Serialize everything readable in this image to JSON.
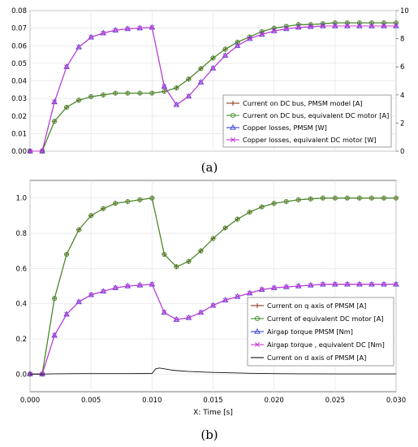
{
  "chart_data": [
    {
      "panel": "a",
      "type": "line",
      "caption": "(a)",
      "xlim": [
        0,
        0.03
      ],
      "ylim": [
        0,
        0.08
      ],
      "y2lim": [
        0,
        10
      ],
      "yticks": [
        "0.00",
        "0.01",
        "0.02",
        "0.03",
        "0.04",
        "0.05",
        "0.06",
        "0.07",
        "0.08"
      ],
      "y2ticks": [
        "0",
        "2",
        "4",
        "6",
        "8",
        "10"
      ],
      "grid": true,
      "legend_position": "lower-right",
      "series": [
        {
          "name": "Current on DC bus, PMSM model [A]",
          "color": "#8b3a1a",
          "marker": "plus",
          "axis": "left",
          "x": [
            0,
            0.001,
            0.002,
            0.003,
            0.004,
            0.005,
            0.006,
            0.007,
            0.008,
            0.009,
            0.01,
            0.011,
            0.012,
            0.013,
            0.014,
            0.015,
            0.016,
            0.017,
            0.018,
            0.019,
            0.02,
            0.021,
            0.022,
            0.023,
            0.024,
            0.025,
            0.026,
            0.027,
            0.028,
            0.029,
            0.03
          ],
          "y": [
            0,
            0,
            0.017,
            0.025,
            0.029,
            0.031,
            0.032,
            0.033,
            0.033,
            0.033,
            0.033,
            0.034,
            0.036,
            0.041,
            0.047,
            0.053,
            0.058,
            0.062,
            0.065,
            0.068,
            0.07,
            0.071,
            0.072,
            0.072,
            0.0725,
            0.073,
            0.073,
            0.073,
            0.073,
            0.073,
            0.073
          ]
        },
        {
          "name": "Current on DC bus, equivalent DC motor [A]",
          "color": "#3f8f2a",
          "marker": "circle",
          "axis": "left",
          "x": [
            0,
            0.001,
            0.002,
            0.003,
            0.004,
            0.005,
            0.006,
            0.007,
            0.008,
            0.009,
            0.01,
            0.011,
            0.012,
            0.013,
            0.014,
            0.015,
            0.016,
            0.017,
            0.018,
            0.019,
            0.02,
            0.021,
            0.022,
            0.023,
            0.024,
            0.025,
            0.026,
            0.027,
            0.028,
            0.029,
            0.03
          ],
          "y": [
            0,
            0,
            0.017,
            0.025,
            0.029,
            0.031,
            0.032,
            0.033,
            0.033,
            0.033,
            0.033,
            0.034,
            0.036,
            0.041,
            0.047,
            0.053,
            0.058,
            0.062,
            0.065,
            0.068,
            0.07,
            0.071,
            0.072,
            0.072,
            0.0725,
            0.073,
            0.073,
            0.073,
            0.073,
            0.073,
            0.073
          ]
        },
        {
          "name": "Copper losses, PMSM [W]",
          "color": "#3a3fd6",
          "marker": "triangle",
          "axis": "right",
          "x": [
            0,
            0.001,
            0.002,
            0.003,
            0.004,
            0.005,
            0.006,
            0.007,
            0.008,
            0.009,
            0.01,
            0.011,
            0.012,
            0.013,
            0.014,
            0.015,
            0.016,
            0.017,
            0.018,
            0.019,
            0.02,
            0.021,
            0.022,
            0.023,
            0.024,
            0.025,
            0.026,
            0.027,
            0.028,
            0.029,
            0.03
          ],
          "y": [
            0,
            0,
            3.5,
            6.0,
            7.4,
            8.1,
            8.4,
            8.6,
            8.7,
            8.75,
            8.8,
            4.6,
            3.3,
            3.9,
            4.9,
            5.9,
            6.8,
            7.5,
            8.0,
            8.3,
            8.55,
            8.7,
            8.8,
            8.85,
            8.9,
            8.9,
            8.9,
            8.9,
            8.9,
            8.9,
            8.9
          ]
        },
        {
          "name": "Copper losses, equivalent DC motor [W]",
          "color": "#c43ad6",
          "marker": "x",
          "axis": "right",
          "x": [
            0,
            0.001,
            0.002,
            0.003,
            0.004,
            0.005,
            0.006,
            0.007,
            0.008,
            0.009,
            0.01,
            0.011,
            0.012,
            0.013,
            0.014,
            0.015,
            0.016,
            0.017,
            0.018,
            0.019,
            0.02,
            0.021,
            0.022,
            0.023,
            0.024,
            0.025,
            0.026,
            0.027,
            0.028,
            0.029,
            0.03
          ],
          "y": [
            0,
            0,
            3.5,
            6.0,
            7.4,
            8.1,
            8.4,
            8.6,
            8.7,
            8.75,
            8.8,
            4.6,
            3.3,
            3.9,
            4.9,
            5.9,
            6.8,
            7.5,
            8.0,
            8.3,
            8.55,
            8.7,
            8.8,
            8.85,
            8.9,
            8.9,
            8.9,
            8.9,
            8.9,
            8.9,
            8.9
          ]
        }
      ]
    },
    {
      "panel": "b",
      "type": "line",
      "caption": "(b)",
      "xlabel": "X: Time [s]",
      "xlim": [
        0,
        0.03
      ],
      "ylim": [
        -0.1,
        1.1
      ],
      "xticks": [
        "0.000",
        "0.005",
        "0.010",
        "0.015",
        "0.020",
        "0.025",
        "0.030"
      ],
      "yticks": [
        "0.0",
        "0.2",
        "0.4",
        "0.6",
        "0.8",
        "1.0"
      ],
      "grid": true,
      "legend_position": "lower-right",
      "series": [
        {
          "name": "Current on q axis of PMSM [A]",
          "color": "#8b3a1a",
          "marker": "plus",
          "x": [
            0,
            0.001,
            0.002,
            0.003,
            0.004,
            0.005,
            0.006,
            0.007,
            0.008,
            0.009,
            0.01,
            0.011,
            0.012,
            0.013,
            0.014,
            0.015,
            0.016,
            0.017,
            0.018,
            0.019,
            0.02,
            0.021,
            0.022,
            0.023,
            0.024,
            0.025,
            0.026,
            0.027,
            0.028,
            0.029,
            0.03
          ],
          "y": [
            0,
            0,
            0.43,
            0.68,
            0.82,
            0.9,
            0.94,
            0.97,
            0.98,
            0.99,
            1.0,
            0.68,
            0.61,
            0.64,
            0.7,
            0.77,
            0.83,
            0.88,
            0.92,
            0.95,
            0.97,
            0.98,
            0.99,
            0.995,
            1.0,
            1.0,
            1.0,
            1.0,
            1.0,
            1.0,
            1.0
          ]
        },
        {
          "name": "Current of equivalent DC motor [A]",
          "color": "#3f8f2a",
          "marker": "circle",
          "x": [
            0,
            0.001,
            0.002,
            0.003,
            0.004,
            0.005,
            0.006,
            0.007,
            0.008,
            0.009,
            0.01,
            0.011,
            0.012,
            0.013,
            0.014,
            0.015,
            0.016,
            0.017,
            0.018,
            0.019,
            0.02,
            0.021,
            0.022,
            0.023,
            0.024,
            0.025,
            0.026,
            0.027,
            0.028,
            0.029,
            0.03
          ],
          "y": [
            0,
            0,
            0.43,
            0.68,
            0.82,
            0.9,
            0.94,
            0.97,
            0.98,
            0.99,
            1.0,
            0.68,
            0.61,
            0.64,
            0.7,
            0.77,
            0.83,
            0.88,
            0.92,
            0.95,
            0.97,
            0.98,
            0.99,
            0.995,
            1.0,
            1.0,
            1.0,
            1.0,
            1.0,
            1.0,
            1.0
          ]
        },
        {
          "name": "Airgap torque PMSM [Nm]",
          "color": "#3a3fd6",
          "marker": "triangle",
          "x": [
            0,
            0.001,
            0.002,
            0.003,
            0.004,
            0.005,
            0.006,
            0.007,
            0.008,
            0.009,
            0.01,
            0.011,
            0.012,
            0.013,
            0.014,
            0.015,
            0.016,
            0.017,
            0.018,
            0.019,
            0.02,
            0.021,
            0.022,
            0.023,
            0.024,
            0.025,
            0.026,
            0.027,
            0.028,
            0.029,
            0.03
          ],
          "y": [
            0,
            0,
            0.22,
            0.34,
            0.41,
            0.45,
            0.47,
            0.49,
            0.5,
            0.505,
            0.51,
            0.35,
            0.31,
            0.32,
            0.35,
            0.39,
            0.42,
            0.44,
            0.46,
            0.48,
            0.49,
            0.495,
            0.5,
            0.505,
            0.51,
            0.51,
            0.51,
            0.51,
            0.51,
            0.51,
            0.51
          ]
        },
        {
          "name": "Airgap torque , equivalent DC [Nm]",
          "color": "#c43ad6",
          "marker": "x",
          "x": [
            0,
            0.001,
            0.002,
            0.003,
            0.004,
            0.005,
            0.006,
            0.007,
            0.008,
            0.009,
            0.01,
            0.011,
            0.012,
            0.013,
            0.014,
            0.015,
            0.016,
            0.017,
            0.018,
            0.019,
            0.02,
            0.021,
            0.022,
            0.023,
            0.024,
            0.025,
            0.026,
            0.027,
            0.028,
            0.029,
            0.03
          ],
          "y": [
            0,
            0,
            0.22,
            0.34,
            0.41,
            0.45,
            0.47,
            0.49,
            0.5,
            0.505,
            0.51,
            0.35,
            0.31,
            0.32,
            0.35,
            0.39,
            0.42,
            0.44,
            0.46,
            0.48,
            0.49,
            0.495,
            0.5,
            0.505,
            0.51,
            0.51,
            0.51,
            0.51,
            0.51,
            0.51,
            0.51
          ]
        },
        {
          "name": "Current on d axis of PMSM [A]",
          "color": "#111111",
          "marker": "none",
          "x": [
            0,
            0.001,
            0.002,
            0.004,
            0.006,
            0.008,
            0.01,
            0.0103,
            0.0106,
            0.011,
            0.0115,
            0.012,
            0.013,
            0.014,
            0.015,
            0.016,
            0.018,
            0.02,
            0.022,
            0.025,
            0.028,
            0.03
          ],
          "y": [
            0,
            0,
            0.002,
            0.003,
            0.003,
            0.003,
            0.004,
            0.03,
            0.035,
            0.03,
            0.024,
            0.02,
            0.015,
            0.012,
            0.01,
            0.008,
            0.005,
            0.003,
            0.002,
            0.001,
            0.001,
            0.001
          ]
        }
      ]
    }
  ]
}
